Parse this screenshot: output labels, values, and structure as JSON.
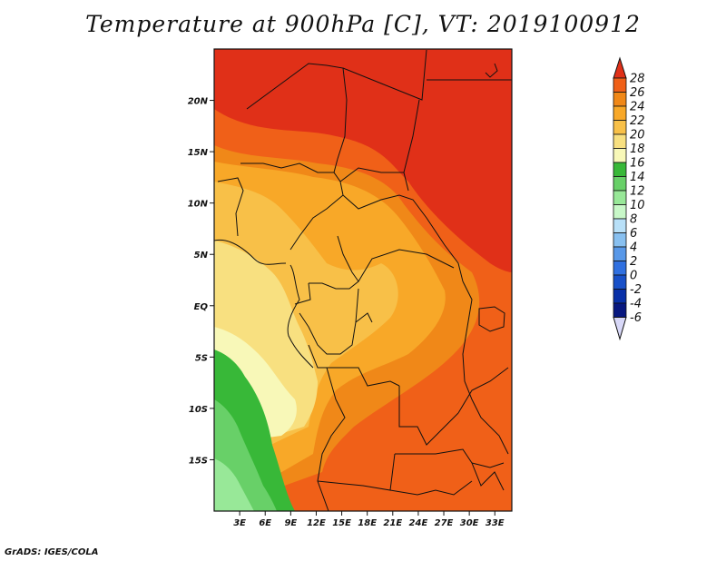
{
  "title": "Temperature at 900hPa [C], VT: 2019100912",
  "credit": "GrADS: IGES/COLA",
  "map": {
    "lon_range": [
      0,
      35
    ],
    "lat_range": [
      -20,
      25
    ],
    "lon_ticks": [
      {
        "value": 3,
        "label": "3E"
      },
      {
        "value": 6,
        "label": "6E"
      },
      {
        "value": 9,
        "label": "9E"
      },
      {
        "value": 12,
        "label": "12E"
      },
      {
        "value": 15,
        "label": "15E"
      },
      {
        "value": 18,
        "label": "18E"
      },
      {
        "value": 21,
        "label": "21E"
      },
      {
        "value": 24,
        "label": "24E"
      },
      {
        "value": 27,
        "label": "27E"
      },
      {
        "value": 30,
        "label": "30E"
      },
      {
        "value": 33,
        "label": "33E"
      }
    ],
    "lat_ticks": [
      {
        "value": 20,
        "label": "20N"
      },
      {
        "value": 15,
        "label": "15N"
      },
      {
        "value": 10,
        "label": "10N"
      },
      {
        "value": 5,
        "label": "5N"
      },
      {
        "value": 0,
        "label": "EQ"
      },
      {
        "value": -5,
        "label": "5S"
      },
      {
        "value": -10,
        "label": "10S"
      },
      {
        "value": -15,
        "label": "15S"
      }
    ]
  },
  "colorbar": {
    "levels": [
      28,
      26,
      24,
      22,
      20,
      18,
      16,
      14,
      12,
      10,
      8,
      6,
      4,
      2,
      0,
      -2,
      -4,
      -6
    ],
    "colors_top_to_bottom": [
      "#e03018",
      "#f06018",
      "#f08818",
      "#f8a828",
      "#f8c048",
      "#f8e080",
      "#f8f8b8",
      "#38b838",
      "#68d068",
      "#98e898",
      "#c8f8c8",
      "#b8e0f8",
      "#88c0f0",
      "#5898e8",
      "#3070e0",
      "#1850c8",
      "#0830a8",
      "#081880",
      "#d8d8f8"
    ]
  }
}
